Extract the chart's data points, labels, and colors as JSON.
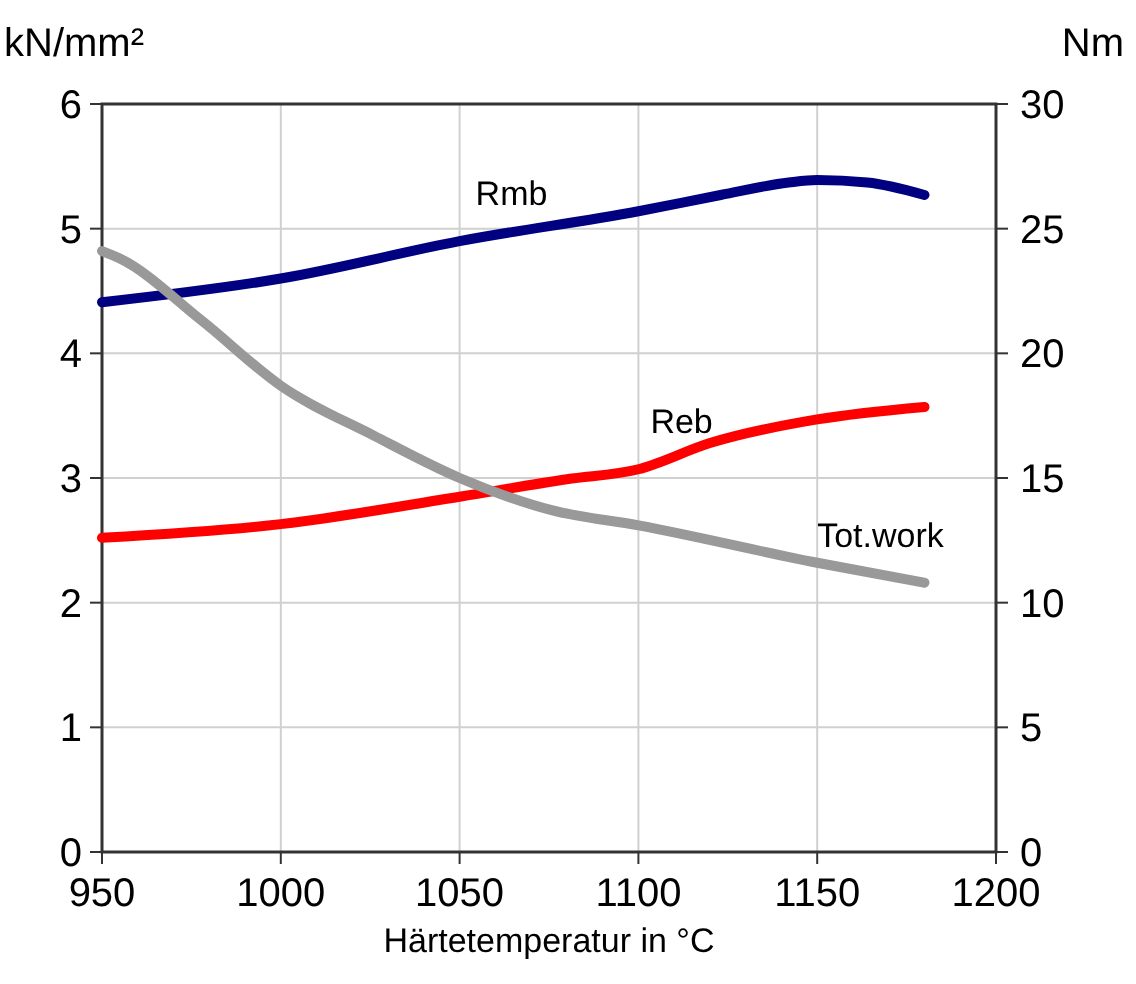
{
  "chart_data": {
    "type": "line",
    "xlabel": "Härtetemperatur in °C",
    "ylabel": "kN/mm²",
    "y2label": "Nm",
    "xlim": [
      950,
      1200
    ],
    "xticks": [
      950,
      1000,
      1050,
      1100,
      1150,
      1200
    ],
    "ylim": [
      0,
      6
    ],
    "yticks": [
      0,
      1,
      2,
      3,
      4,
      5,
      6
    ],
    "y2lim": [
      0,
      30
    ],
    "y2ticks": [
      0,
      5,
      10,
      15,
      20,
      25,
      30
    ],
    "grid": true,
    "marker": "none",
    "line_style": "solid",
    "series": [
      {
        "name": "Rmb",
        "color": "#000080",
        "x": [
          950,
          1000,
          1050,
          1100,
          1123,
          1142,
          1150,
          1164,
          1180
        ],
        "values": [
          4.41,
          4.6,
          4.9,
          5.14,
          5.27,
          5.37,
          5.39,
          5.37,
          5.27
        ]
      },
      {
        "name": "Reb",
        "color": "#ff0000",
        "x": [
          950,
          1000,
          1050,
          1080,
          1100,
          1120,
          1150,
          1180
        ],
        "values": [
          2.52,
          2.63,
          2.85,
          2.99,
          3.07,
          3.28,
          3.47,
          3.57
        ]
      },
      {
        "name": "Tot.work",
        "color": "#999999",
        "axis": "y2",
        "x": [
          950,
          955,
          978,
          1000,
          1026,
          1050,
          1076,
          1100,
          1150,
          1180
        ],
        "values": [
          24.1,
          23.8,
          21.3,
          18.7,
          16.7,
          15.0,
          13.7,
          13.1,
          11.6,
          10.8
        ]
      }
    ]
  }
}
